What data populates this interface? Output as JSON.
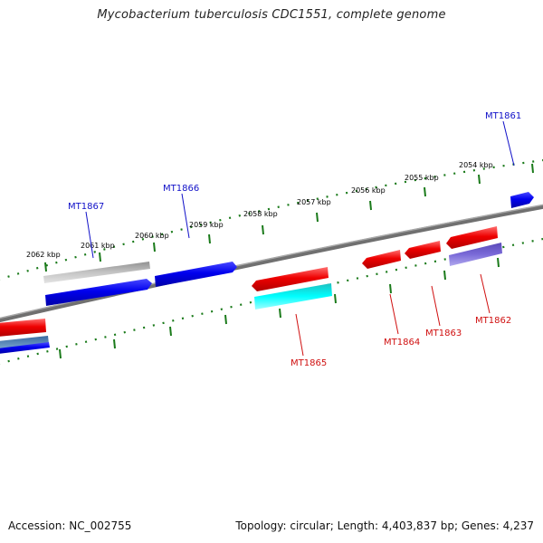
{
  "title": "Mycobacterium tuberculosis CDC1551, complete genome",
  "footer": {
    "accession": "Accession: NC_002755",
    "info": "Topology: circular; Length: 4,403,837 bp; Genes: 4,237"
  },
  "colors": {
    "forward_label": "#1010c8",
    "reverse_label": "#d01010",
    "tick": "#1a7a1a",
    "backbone": "#808080"
  },
  "ruler_labels": [
    "2062 kbp",
    "2061 kbp",
    "2060 kbp",
    "2059 kbp",
    "2058 kbp",
    "2057 kbp",
    "2056 kbp",
    "2055 kbp",
    "2054 kbp"
  ],
  "gene_labels": {
    "forward": [
      "MT1867",
      "MT1866",
      "MT1861"
    ],
    "reverse": [
      "MT1865",
      "MT1864",
      "MT1863",
      "MT1862"
    ]
  }
}
